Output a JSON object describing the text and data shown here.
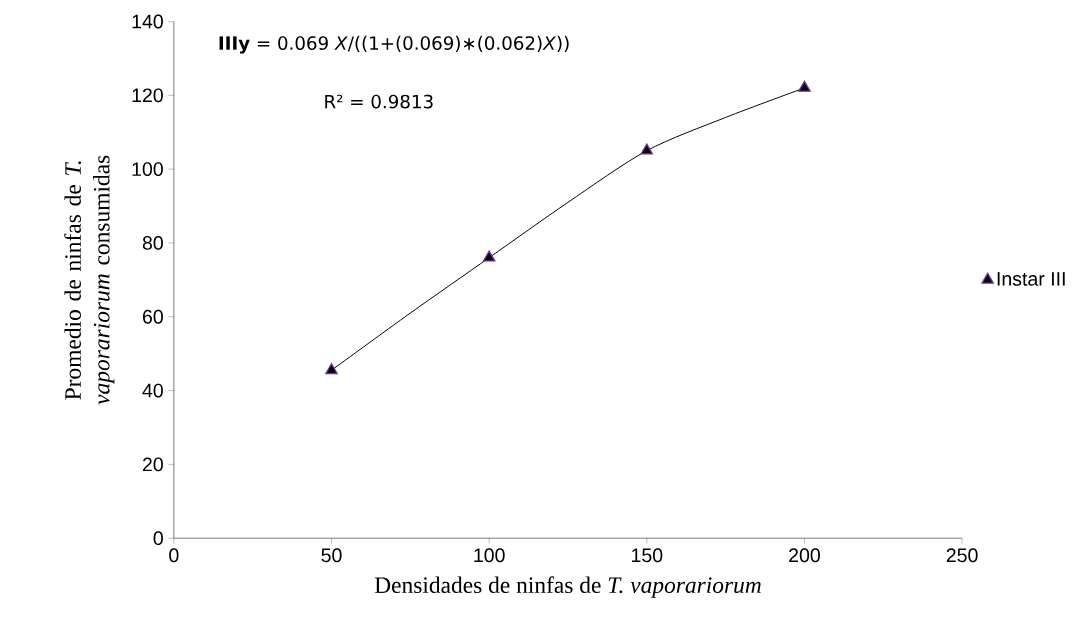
{
  "chart_data": {
    "type": "scatter",
    "xlabel": "Densidades de ninfas de *T. vaporariorum*",
    "ylabel": "Promedio de ninfas de *T. vaporariorum* consumidas",
    "annotations": [
      "**IIIy** = 0.069 *X*/((1+(0.069)∗(0.062)*X*))",
      "R² = 0.9813"
    ],
    "series": [
      {
        "name": "Instar III",
        "color": "#000000",
        "x": [
          50,
          100,
          150,
          200
        ],
        "values": [
          45.5,
          76,
          105,
          122
        ],
        "marker": "triangle"
      },
      {
        "type": "line",
        "color": "#000000",
        "x": [
          50,
          75,
          100,
          125,
          150,
          175,
          200
        ],
        "values": [
          45.5,
          61,
          76,
          91,
          105,
          114,
          122
        ],
        "marker": "none"
      }
    ],
    "xlim": [
      0,
      250
    ],
    "ylim": [
      0,
      140
    ],
    "xticks": [
      0,
      50,
      100,
      150,
      200,
      250
    ],
    "yticks": [
      0,
      20,
      40,
      60,
      80,
      100,
      120,
      140
    ],
    "grid": false,
    "legend": "right"
  }
}
